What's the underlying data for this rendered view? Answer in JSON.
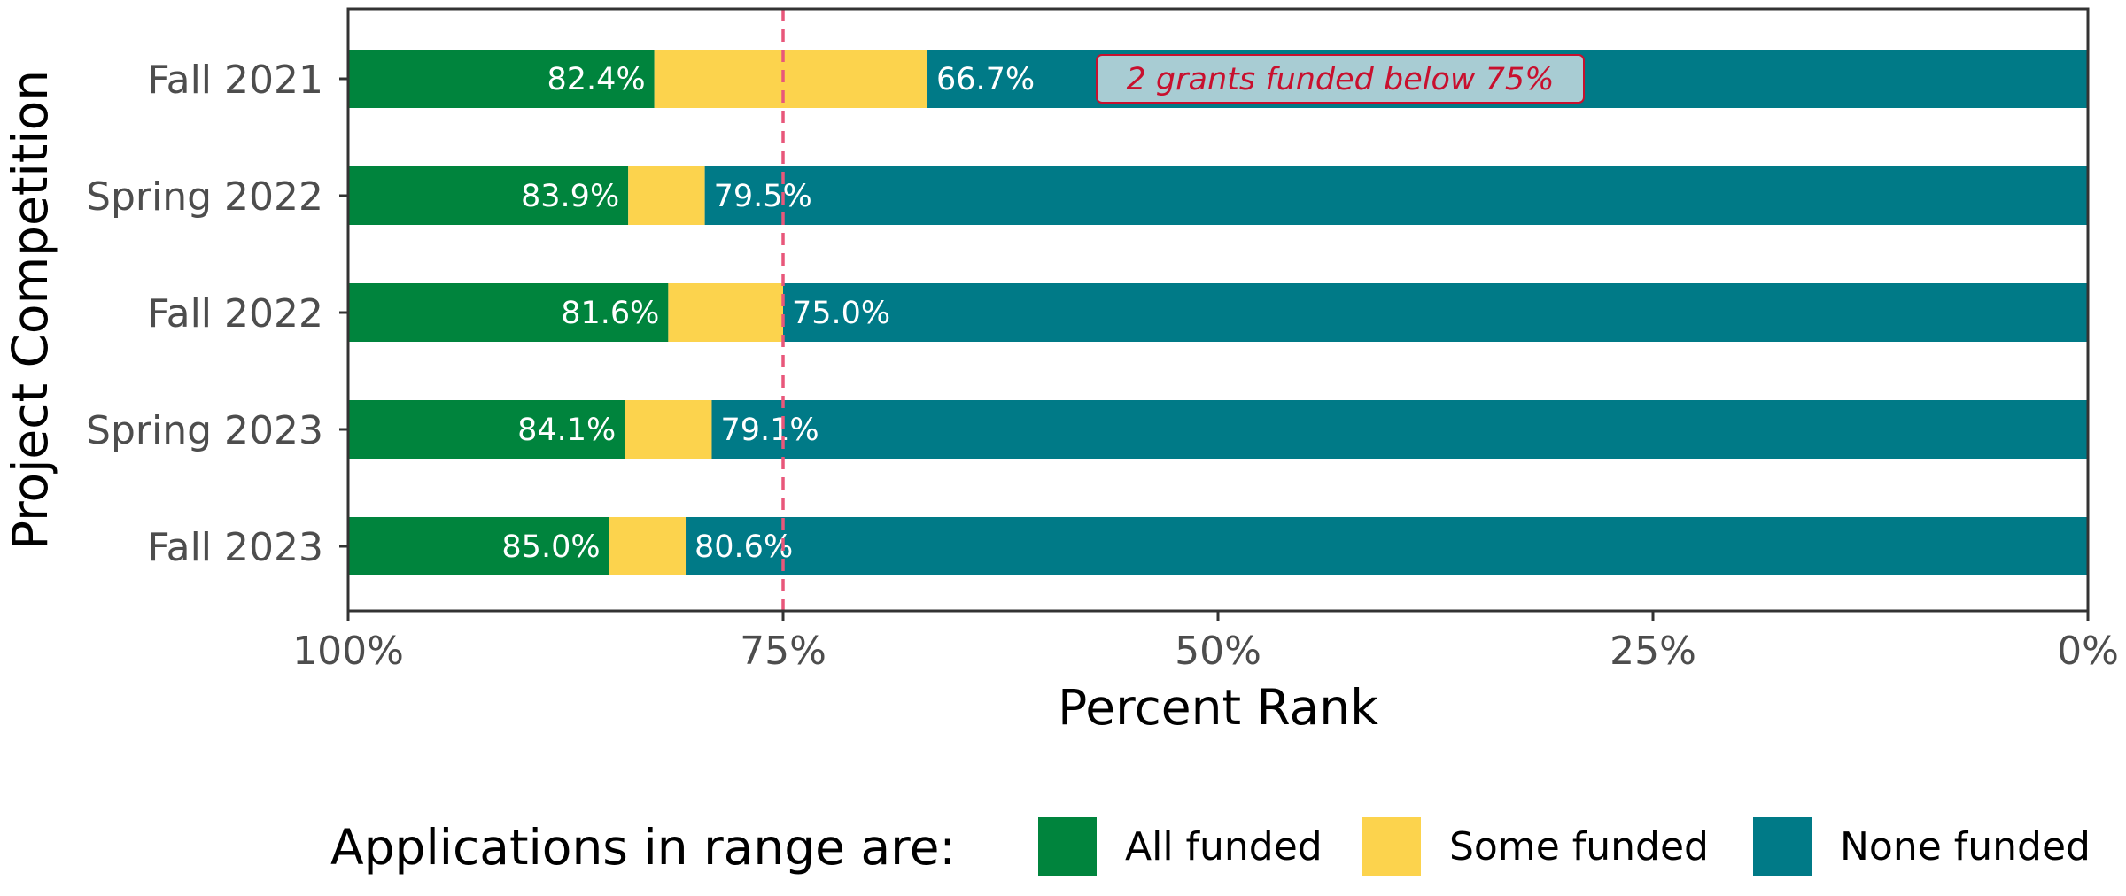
{
  "chart_data": {
    "type": "bar",
    "orientation": "horizontal",
    "stacked": true,
    "xlabel": "Percent Rank",
    "ylabel": "Project Competition",
    "xlim": [
      100,
      0
    ],
    "x_ticks": [
      100,
      75,
      50,
      25,
      0
    ],
    "x_tick_labels": [
      "100%",
      "75%",
      "50%",
      "25%",
      "0%"
    ],
    "categories": [
      "Fall 2021",
      "Spring 2022",
      "Fall 2022",
      "Spring 2023",
      "Fall 2023"
    ],
    "all_funded_cutoff": [
      82.4,
      83.9,
      81.6,
      84.1,
      85.0
    ],
    "none_funded_cutoff": [
      66.7,
      79.5,
      75.0,
      79.1,
      80.6
    ],
    "cutoff_labels": {
      "all_funded": [
        "82.4%",
        "83.9%",
        "81.6%",
        "84.1%",
        "85.0%"
      ],
      "none_funded": [
        "66.7%",
        "79.5%",
        "75.0%",
        "79.1%",
        "80.6%"
      ]
    },
    "reference_line": {
      "value": 75,
      "style": "dashed",
      "color": "#e8577a"
    },
    "annotation": {
      "text": "2 grants funded below 75%",
      "category": "Fall 2021"
    },
    "series": [
      {
        "name": "All funded",
        "color": "#00843d"
      },
      {
        "name": "Some funded",
        "color": "#fcd34d"
      },
      {
        "name": "None funded",
        "color": "#007a87"
      }
    ],
    "legend": {
      "title": "Applications in range are:",
      "position": "bottom"
    },
    "grid": false
  },
  "colors": {
    "annotation_fill": "#a8ccd3",
    "annotation_text": "#c8102e",
    "axis_text": "#4d4d4d",
    "panel_border": "#333333"
  }
}
